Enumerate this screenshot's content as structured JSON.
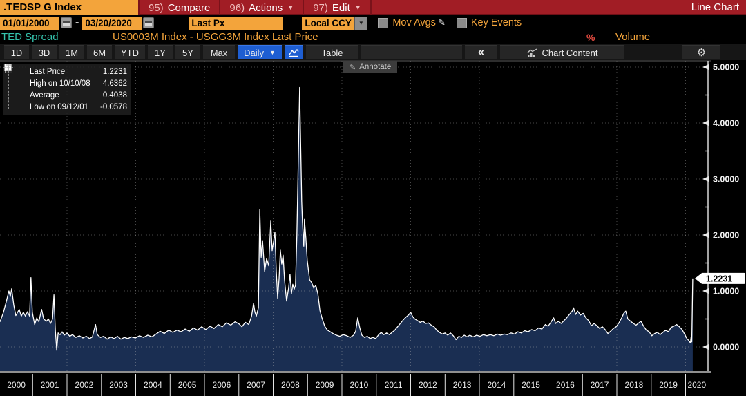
{
  "header": {
    "ticker": ".TEDSP G Index",
    "menu": [
      {
        "num": "95)",
        "label": "Compare",
        "dropdown": false
      },
      {
        "num": "96)",
        "label": "Actions",
        "dropdown": true
      },
      {
        "num": "97)",
        "label": "Edit",
        "dropdown": true
      }
    ],
    "right_label": "Line Chart"
  },
  "controls": {
    "date_from": "01/01/2000",
    "date_to": "03/20/2020",
    "date_separator": "-",
    "field": "Last Px",
    "currency": "Local CCY",
    "dropdown_caret": "▼",
    "mov_avgs_label": "Mov Avgs",
    "key_events_label": "Key Events"
  },
  "security": {
    "name": "TED Spread",
    "formula": "US0003M Index - USGG3M Index Last Price",
    "percent_symbol": "%",
    "volume_label": "Volume"
  },
  "toolbar": {
    "ranges": [
      "1D",
      "3D",
      "1M",
      "6M",
      "YTD",
      "1Y",
      "5Y",
      "Max"
    ],
    "period_label": "Daily",
    "period_caret": "▼",
    "table_label": "Table",
    "back_icon": "«",
    "chart_content_label": "Chart Content",
    "gear_icon": "⚙"
  },
  "legend": {
    "items": [
      {
        "marker": "square",
        "label": "Last Price",
        "value": "1.2231"
      },
      {
        "marker": "high",
        "label": "High on 10/10/08",
        "value": "4.6362"
      },
      {
        "marker": "average",
        "label": "Average",
        "value": "0.4038"
      },
      {
        "marker": "low",
        "label": "Low on 09/12/01",
        "value": "-0.0578"
      }
    ]
  },
  "annotate_tooltip": "Annotate",
  "last_price_badge": "1.2231",
  "colors": {
    "amber": "#f3a43b",
    "bar_red": "#a11d25",
    "teal": "#35c3ae",
    "selected_blue": "#1e5ed2",
    "area_fill": "#1a2e52",
    "line": "#ffffff",
    "percent_red": "#e04a3f"
  },
  "chart_data": {
    "type": "area",
    "title": "TED Spread — US0003M Index - USGG3M Index Last Price",
    "legend_position": "top-left",
    "grid": "dotted",
    "x_axis": {
      "start_year": 2000,
      "end_year": 2020,
      "tick_labels": [
        "2000",
        "2001",
        "2002",
        "2003",
        "2004",
        "2005",
        "2006",
        "2007",
        "2008",
        "2009",
        "2010",
        "2011",
        "2012",
        "2013",
        "2014",
        "2015",
        "2016",
        "2017",
        "2018",
        "2019",
        "2020"
      ]
    },
    "y_axis": {
      "min": 0.0,
      "max": 5.0,
      "minor_step": 0.5,
      "tick_labels": [
        "0.0000",
        "1.0000",
        "2.0000",
        "3.0000",
        "4.0000",
        "5.0000"
      ]
    },
    "stats": {
      "last_price": 1.2231,
      "high": 4.6362,
      "high_date": "10/10/08",
      "average": 0.4038,
      "low": -0.0578,
      "low_date": "09/12/01"
    },
    "series": [
      [
        2000.05,
        0.45
      ],
      [
        2000.15,
        0.62
      ],
      [
        2000.23,
        0.8
      ],
      [
        2000.31,
        1.0
      ],
      [
        2000.35,
        0.9
      ],
      [
        2000.39,
        1.04
      ],
      [
        2000.45,
        0.75
      ],
      [
        2000.51,
        0.56
      ],
      [
        2000.61,
        0.67
      ],
      [
        2000.67,
        0.55
      ],
      [
        2000.73,
        0.62
      ],
      [
        2000.79,
        0.55
      ],
      [
        2000.85,
        0.63
      ],
      [
        2000.91,
        0.55
      ],
      [
        2000.95,
        1.24
      ],
      [
        2000.99,
        0.62
      ],
      [
        2001.06,
        0.4
      ],
      [
        2001.12,
        0.52
      ],
      [
        2001.18,
        0.45
      ],
      [
        2001.26,
        0.67
      ],
      [
        2001.32,
        0.5
      ],
      [
        2001.4,
        0.46
      ],
      [
        2001.46,
        0.5
      ],
      [
        2001.52,
        0.42
      ],
      [
        2001.58,
        0.5
      ],
      [
        2001.62,
        0.93
      ],
      [
        2001.66,
        0.3
      ],
      [
        2001.7,
        -0.0578
      ],
      [
        2001.74,
        0.25
      ],
      [
        2001.8,
        0.22
      ],
      [
        2001.86,
        0.27
      ],
      [
        2001.92,
        0.21
      ],
      [
        2002.0,
        0.25
      ],
      [
        2002.08,
        0.19
      ],
      [
        2002.16,
        0.22
      ],
      [
        2002.26,
        0.17
      ],
      [
        2002.36,
        0.2
      ],
      [
        2002.46,
        0.16
      ],
      [
        2002.56,
        0.19
      ],
      [
        2002.66,
        0.15
      ],
      [
        2002.74,
        0.18
      ],
      [
        2002.83,
        0.4
      ],
      [
        2002.88,
        0.22
      ],
      [
        2002.97,
        0.17
      ],
      [
        2003.07,
        0.19
      ],
      [
        2003.17,
        0.14
      ],
      [
        2003.27,
        0.18
      ],
      [
        2003.37,
        0.15
      ],
      [
        2003.47,
        0.19
      ],
      [
        2003.57,
        0.14
      ],
      [
        2003.67,
        0.17
      ],
      [
        2003.77,
        0.15
      ],
      [
        2003.87,
        0.18
      ],
      [
        2003.99,
        0.16
      ],
      [
        2004.11,
        0.2
      ],
      [
        2004.23,
        0.17
      ],
      [
        2004.35,
        0.21
      ],
      [
        2004.47,
        0.18
      ],
      [
        2004.59,
        0.23
      ],
      [
        2004.71,
        0.28
      ],
      [
        2004.83,
        0.24
      ],
      [
        2004.96,
        0.3
      ],
      [
        2005.08,
        0.26
      ],
      [
        2005.2,
        0.3
      ],
      [
        2005.32,
        0.27
      ],
      [
        2005.44,
        0.32
      ],
      [
        2005.56,
        0.28
      ],
      [
        2005.68,
        0.34
      ],
      [
        2005.8,
        0.3
      ],
      [
        2005.92,
        0.36
      ],
      [
        2006.04,
        0.31
      ],
      [
        2006.16,
        0.37
      ],
      [
        2006.28,
        0.33
      ],
      [
        2006.4,
        0.4
      ],
      [
        2006.52,
        0.36
      ],
      [
        2006.64,
        0.43
      ],
      [
        2006.77,
        0.39
      ],
      [
        2006.89,
        0.45
      ],
      [
        2007.01,
        0.41
      ],
      [
        2007.09,
        0.36
      ],
      [
        2007.19,
        0.44
      ],
      [
        2007.29,
        0.4
      ],
      [
        2007.37,
        0.55
      ],
      [
        2007.43,
        0.78
      ],
      [
        2007.47,
        0.62
      ],
      [
        2007.51,
        0.55
      ],
      [
        2007.57,
        0.7
      ],
      [
        2007.61,
        2.46
      ],
      [
        2007.65,
        1.6
      ],
      [
        2007.69,
        1.9
      ],
      [
        2007.75,
        1.35
      ],
      [
        2007.81,
        1.58
      ],
      [
        2007.87,
        1.45
      ],
      [
        2007.93,
        2.25
      ],
      [
        2007.97,
        1.72
      ],
      [
        2008.01,
        1.88
      ],
      [
        2008.05,
        2.05
      ],
      [
        2008.09,
        1.35
      ],
      [
        2008.13,
        0.87
      ],
      [
        2008.17,
        1.22
      ],
      [
        2008.21,
        1.73
      ],
      [
        2008.25,
        1.48
      ],
      [
        2008.29,
        1.64
      ],
      [
        2008.33,
        1.2
      ],
      [
        2008.39,
        0.82
      ],
      [
        2008.45,
        1.06
      ],
      [
        2008.49,
        1.3
      ],
      [
        2008.53,
        0.95
      ],
      [
        2008.57,
        1.12
      ],
      [
        2008.61,
        1.03
      ],
      [
        2008.65,
        1.1
      ],
      [
        2008.69,
        2.0
      ],
      [
        2008.73,
        3.3
      ],
      [
        2008.77,
        4.6362
      ],
      [
        2008.81,
        3.3
      ],
      [
        2008.83,
        2.6
      ],
      [
        2008.85,
        2.25
      ],
      [
        2008.89,
        1.8
      ],
      [
        2008.91,
        2.28
      ],
      [
        2008.95,
        1.95
      ],
      [
        2008.99,
        1.55
      ],
      [
        2009.06,
        1.2
      ],
      [
        2009.12,
        1.15
      ],
      [
        2009.18,
        1.05
      ],
      [
        2009.24,
        1.1
      ],
      [
        2009.3,
        0.95
      ],
      [
        2009.36,
        0.65
      ],
      [
        2009.42,
        0.52
      ],
      [
        2009.5,
        0.37
      ],
      [
        2009.58,
        0.3
      ],
      [
        2009.66,
        0.27
      ],
      [
        2009.74,
        0.24
      ],
      [
        2009.84,
        0.21
      ],
      [
        2009.94,
        0.19
      ],
      [
        2010.04,
        0.22
      ],
      [
        2010.14,
        0.2
      ],
      [
        2010.24,
        0.17
      ],
      [
        2010.34,
        0.21
      ],
      [
        2010.4,
        0.28
      ],
      [
        2010.46,
        0.52
      ],
      [
        2010.52,
        0.34
      ],
      [
        2010.58,
        0.21
      ],
      [
        2010.66,
        0.17
      ],
      [
        2010.74,
        0.19
      ],
      [
        2010.82,
        0.15
      ],
      [
        2010.9,
        0.17
      ],
      [
        2010.98,
        0.15
      ],
      [
        2011.06,
        0.21
      ],
      [
        2011.14,
        0.26
      ],
      [
        2011.22,
        0.22
      ],
      [
        2011.3,
        0.25
      ],
      [
        2011.38,
        0.22
      ],
      [
        2011.46,
        0.26
      ],
      [
        2011.54,
        0.3
      ],
      [
        2011.62,
        0.36
      ],
      [
        2011.7,
        0.42
      ],
      [
        2011.78,
        0.48
      ],
      [
        2011.86,
        0.53
      ],
      [
        2011.94,
        0.57
      ],
      [
        2012.0,
        0.62
      ],
      [
        2012.06,
        0.54
      ],
      [
        2012.12,
        0.5
      ],
      [
        2012.2,
        0.47
      ],
      [
        2012.28,
        0.44
      ],
      [
        2012.36,
        0.46
      ],
      [
        2012.44,
        0.42
      ],
      [
        2012.52,
        0.43
      ],
      [
        2012.6,
        0.39
      ],
      [
        2012.68,
        0.36
      ],
      [
        2012.76,
        0.3
      ],
      [
        2012.84,
        0.26
      ],
      [
        2012.92,
        0.23
      ],
      [
        2013.0,
        0.25
      ],
      [
        2013.08,
        0.21
      ],
      [
        2013.16,
        0.25
      ],
      [
        2013.24,
        0.2
      ],
      [
        2013.32,
        0.13
      ],
      [
        2013.4,
        0.19
      ],
      [
        2013.48,
        0.17
      ],
      [
        2013.56,
        0.21
      ],
      [
        2013.64,
        0.18
      ],
      [
        2013.72,
        0.21
      ],
      [
        2013.82,
        0.18
      ],
      [
        2013.92,
        0.21
      ],
      [
        2014.02,
        0.19
      ],
      [
        2014.12,
        0.22
      ],
      [
        2014.22,
        0.2
      ],
      [
        2014.32,
        0.22
      ],
      [
        2014.42,
        0.2
      ],
      [
        2014.52,
        0.23
      ],
      [
        2014.62,
        0.21
      ],
      [
        2014.72,
        0.23
      ],
      [
        2014.82,
        0.22
      ],
      [
        2014.92,
        0.25
      ],
      [
        2015.02,
        0.23
      ],
      [
        2015.12,
        0.27
      ],
      [
        2015.22,
        0.25
      ],
      [
        2015.32,
        0.29
      ],
      [
        2015.42,
        0.27
      ],
      [
        2015.52,
        0.31
      ],
      [
        2015.62,
        0.29
      ],
      [
        2015.72,
        0.34
      ],
      [
        2015.82,
        0.32
      ],
      [
        2015.92,
        0.4
      ],
      [
        2016.0,
        0.37
      ],
      [
        2016.08,
        0.44
      ],
      [
        2016.16,
        0.52
      ],
      [
        2016.22,
        0.42
      ],
      [
        2016.3,
        0.46
      ],
      [
        2016.38,
        0.42
      ],
      [
        2016.46,
        0.47
      ],
      [
        2016.54,
        0.52
      ],
      [
        2016.62,
        0.58
      ],
      [
        2016.7,
        0.64
      ],
      [
        2016.74,
        0.7
      ],
      [
        2016.8,
        0.58
      ],
      [
        2016.86,
        0.64
      ],
      [
        2016.94,
        0.57
      ],
      [
        2017.02,
        0.6
      ],
      [
        2017.1,
        0.52
      ],
      [
        2017.18,
        0.47
      ],
      [
        2017.26,
        0.38
      ],
      [
        2017.34,
        0.42
      ],
      [
        2017.42,
        0.38
      ],
      [
        2017.5,
        0.33
      ],
      [
        2017.58,
        0.36
      ],
      [
        2017.66,
        0.31
      ],
      [
        2017.74,
        0.24
      ],
      [
        2017.82,
        0.28
      ],
      [
        2017.9,
        0.33
      ],
      [
        2017.98,
        0.36
      ],
      [
        2018.06,
        0.43
      ],
      [
        2018.14,
        0.52
      ],
      [
        2018.2,
        0.6
      ],
      [
        2018.26,
        0.64
      ],
      [
        2018.32,
        0.5
      ],
      [
        2018.4,
        0.46
      ],
      [
        2018.48,
        0.42
      ],
      [
        2018.56,
        0.39
      ],
      [
        2018.64,
        0.43
      ],
      [
        2018.7,
        0.46
      ],
      [
        2018.78,
        0.37
      ],
      [
        2018.86,
        0.3
      ],
      [
        2018.94,
        0.27
      ],
      [
        2019.02,
        0.2
      ],
      [
        2019.1,
        0.24
      ],
      [
        2019.18,
        0.26
      ],
      [
        2019.26,
        0.22
      ],
      [
        2019.34,
        0.26
      ],
      [
        2019.42,
        0.3
      ],
      [
        2019.5,
        0.27
      ],
      [
        2019.58,
        0.35
      ],
      [
        2019.66,
        0.37
      ],
      [
        2019.74,
        0.4
      ],
      [
        2019.82,
        0.36
      ],
      [
        2019.9,
        0.31
      ],
      [
        2019.98,
        0.22
      ],
      [
        2020.04,
        0.15
      ],
      [
        2020.1,
        0.11
      ],
      [
        2020.14,
        0.07
      ],
      [
        2020.16,
        0.18
      ],
      [
        2020.18,
        0.09
      ],
      [
        2020.21,
        1.2231
      ]
    ]
  }
}
